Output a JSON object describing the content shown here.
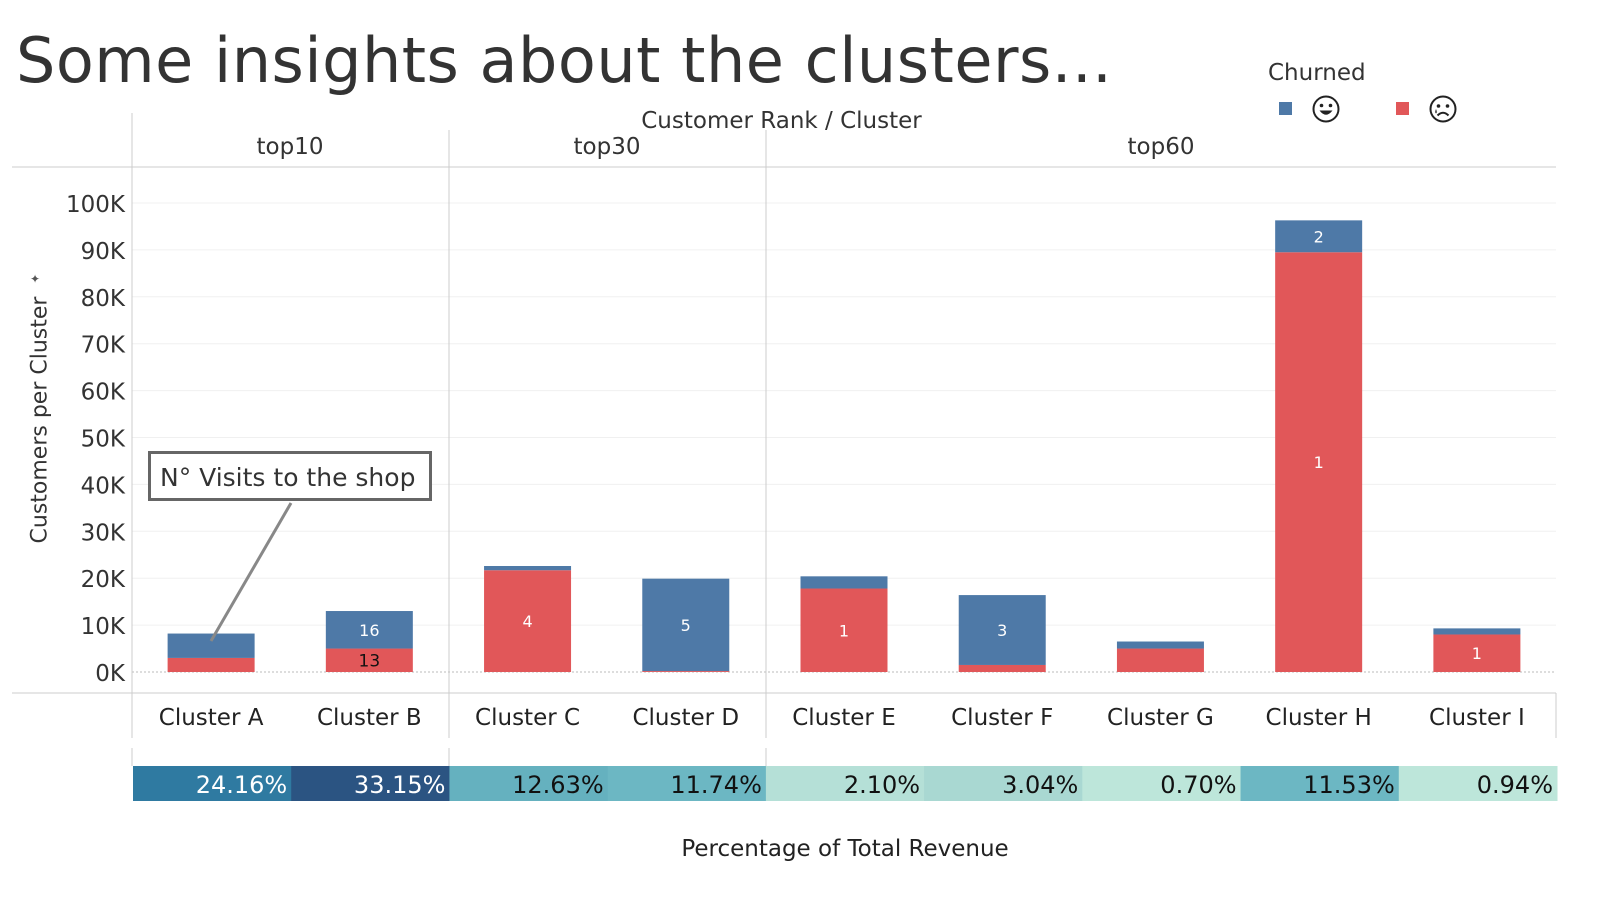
{
  "title": "Some insights about the clusters...",
  "legend": {
    "title": "Churned",
    "items": [
      {
        "icon": "happy-face-icon",
        "color": "#4e79a7"
      },
      {
        "icon": "sad-face-icon",
        "color": "#e15759"
      }
    ]
  },
  "header": {
    "title": "Customer Rank  /  Cluster",
    "panes": [
      "top10",
      "top30",
      "top60"
    ]
  },
  "annotation": "N° Visits to the shop",
  "chart_data": {
    "type": "bar",
    "stacked": true,
    "ylabel": "Customers per Cluster",
    "xlabel": "Percentage of Total Revenue",
    "ylim": [
      0,
      100000
    ],
    "yticks": [
      0,
      10000,
      20000,
      30000,
      40000,
      50000,
      60000,
      70000,
      80000,
      90000,
      100000
    ],
    "ytick_labels": [
      "0K",
      "10K",
      "20K",
      "30K",
      "40K",
      "50K",
      "60K",
      "70K",
      "80K",
      "90K",
      "100K"
    ],
    "grid": true,
    "legend_position": "top-right",
    "categories": [
      "Cluster A",
      "Cluster B",
      "Cluster C",
      "Cluster D",
      "Cluster E",
      "Cluster F",
      "Cluster G",
      "Cluster H",
      "Cluster I"
    ],
    "groups": [
      "top10",
      "top10",
      "top30",
      "top30",
      "top60",
      "top60",
      "top60",
      "top60",
      "top60"
    ],
    "series": [
      {
        "color": "#e15759",
        "values": [
          3000,
          5000,
          21700,
          200,
          17800,
          1500,
          5000,
          89500,
          8000
        ],
        "labels": [
          "",
          "13",
          "4",
          "",
          "1",
          "",
          "",
          "1",
          "1"
        ]
      },
      {
        "color": "#4e79a7",
        "values": [
          5200,
          8000,
          900,
          19700,
          2600,
          14900,
          1500,
          6800,
          1300
        ],
        "labels": [
          "",
          "16",
          "",
          "5",
          "",
          "3",
          "",
          "2",
          ""
        ]
      }
    ],
    "revenue_pct": [
      "24.16%",
      "33.15%",
      "12.63%",
      "11.74%",
      "2.10%",
      "3.04%",
      "0.70%",
      "11.53%",
      "0.94%"
    ],
    "revenue_colors": [
      "#2f7aa1",
      "#2b5482",
      "#65b1bf",
      "#6cb7c3",
      "#b5e0d7",
      "#a9d8d2",
      "#bde6da",
      "#6cb7c3",
      "#bde6da"
    ]
  }
}
